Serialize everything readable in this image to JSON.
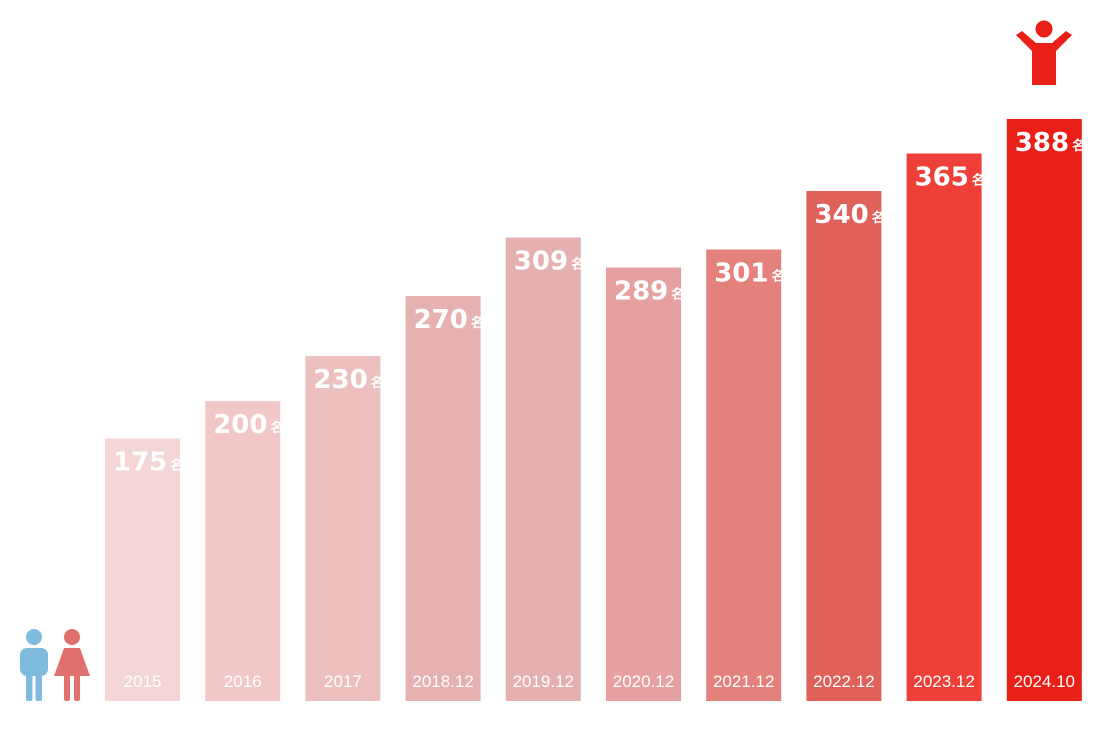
{
  "chart_data": {
    "type": "bar",
    "categories": [
      "2015",
      "2016",
      "2017",
      "2018.12",
      "2019.12",
      "2020.12",
      "2021.12",
      "2022.12",
      "2023.12",
      "2024.10"
    ],
    "values": [
      175,
      200,
      230,
      270,
      309,
      289,
      301,
      340,
      365,
      388
    ],
    "unit": "名",
    "title": "",
    "xlabel": "",
    "ylabel": "",
    "ylim": [
      0,
      400
    ],
    "grid": false,
    "legend": "none",
    "colors": [
      "#f5d6d6",
      "#f1c7c7",
      "#edc0c0",
      "#e6b1b1",
      "#e5b0b0",
      "#e6a09f",
      "#e5817d",
      "#e0605a",
      "#ee4039",
      "#ea1f17"
    ]
  },
  "icons": {
    "people": "man-and-woman-icon",
    "person": "person-raising-arms-icon"
  },
  "icon_colors": {
    "man": "#7fbbdd",
    "woman": "#e0716d",
    "person": "#ea1f17"
  }
}
